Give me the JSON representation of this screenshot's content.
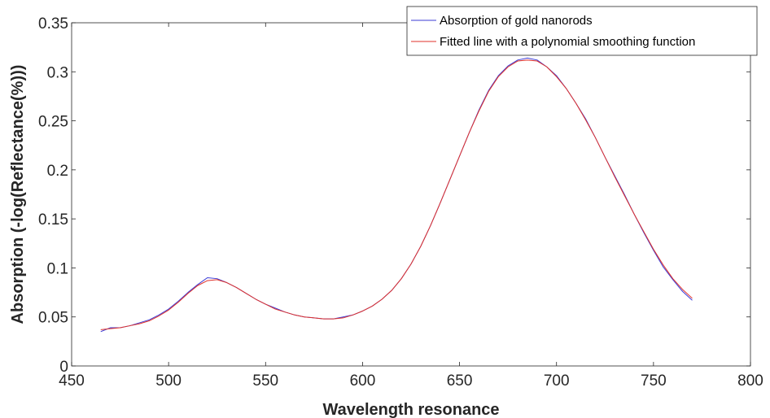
{
  "chart_data": {
    "type": "line",
    "title": "",
    "xlabel": "Wavelength resonance",
    "ylabel": "Absorption (-log(Reflectance(%)))",
    "xlim": [
      450,
      800
    ],
    "ylim": [
      0,
      0.35
    ],
    "xticks": [
      450,
      500,
      550,
      600,
      650,
      700,
      750,
      800
    ],
    "yticks": [
      0,
      0.05,
      0.1,
      0.15,
      0.2,
      0.25,
      0.3,
      0.35
    ],
    "xtick_labels": [
      "450",
      "500",
      "550",
      "600",
      "650",
      "700",
      "750",
      "800"
    ],
    "ytick_labels": [
      "0",
      "0.05",
      "0.1",
      "0.15",
      "0.2",
      "0.25",
      "0.3",
      "0.35"
    ],
    "grid": false,
    "legend_position": "top-right",
    "x": [
      465,
      470,
      475,
      480,
      485,
      490,
      495,
      500,
      505,
      510,
      515,
      520,
      525,
      530,
      535,
      540,
      545,
      550,
      555,
      560,
      565,
      570,
      575,
      580,
      585,
      590,
      595,
      600,
      605,
      610,
      615,
      620,
      625,
      630,
      635,
      640,
      645,
      650,
      655,
      660,
      665,
      670,
      675,
      680,
      685,
      690,
      695,
      700,
      705,
      710,
      715,
      720,
      725,
      730,
      735,
      740,
      745,
      750,
      755,
      760,
      765,
      770
    ],
    "series": [
      {
        "name": "Absorption of gold nanorods",
        "color": "#3b3bd6",
        "values": [
          0.035,
          0.039,
          0.039,
          0.041,
          0.044,
          0.047,
          0.052,
          0.058,
          0.066,
          0.075,
          0.083,
          0.09,
          0.089,
          0.085,
          0.08,
          0.074,
          0.068,
          0.063,
          0.059,
          0.055,
          0.052,
          0.05,
          0.049,
          0.048,
          0.048,
          0.05,
          0.052,
          0.056,
          0.061,
          0.068,
          0.077,
          0.089,
          0.104,
          0.122,
          0.143,
          0.166,
          0.19,
          0.214,
          0.238,
          0.261,
          0.281,
          0.296,
          0.306,
          0.312,
          0.314,
          0.312,
          0.305,
          0.296,
          0.283,
          0.268,
          0.252,
          0.233,
          0.213,
          0.194,
          0.175,
          0.155,
          0.136,
          0.118,
          0.101,
          0.088,
          0.076,
          0.067
        ]
      },
      {
        "name": "Fitted line with a polynomial smoothing function",
        "color": "#e0312a",
        "values": [
          0.037,
          0.038,
          0.039,
          0.041,
          0.043,
          0.046,
          0.051,
          0.057,
          0.065,
          0.074,
          0.082,
          0.087,
          0.088,
          0.085,
          0.08,
          0.074,
          0.068,
          0.063,
          0.058,
          0.055,
          0.052,
          0.05,
          0.049,
          0.048,
          0.048,
          0.049,
          0.052,
          0.056,
          0.061,
          0.068,
          0.077,
          0.089,
          0.104,
          0.122,
          0.143,
          0.166,
          0.19,
          0.214,
          0.238,
          0.26,
          0.28,
          0.295,
          0.305,
          0.311,
          0.312,
          0.311,
          0.305,
          0.295,
          0.283,
          0.268,
          0.251,
          0.233,
          0.213,
          0.193,
          0.174,
          0.155,
          0.137,
          0.119,
          0.103,
          0.089,
          0.078,
          0.069
        ]
      }
    ]
  }
}
